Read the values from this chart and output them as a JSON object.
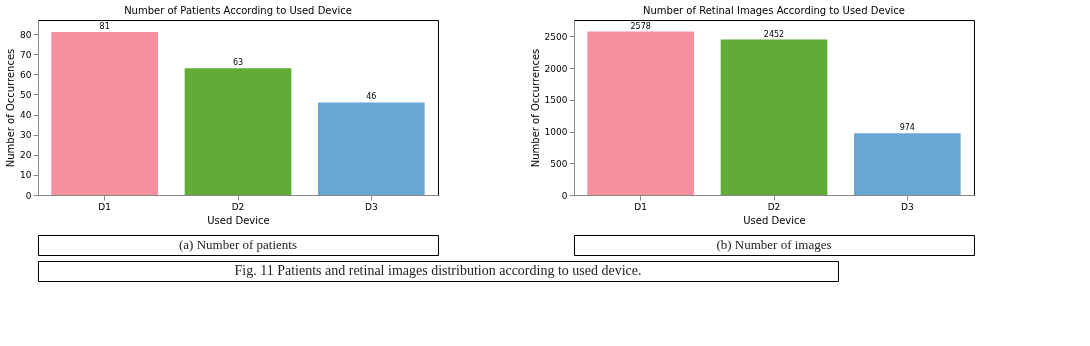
{
  "chart_data": [
    {
      "type": "bar",
      "title": "Number of Patients According to Used Device",
      "xlabel": "Used Device",
      "ylabel": "Number of Occurrences",
      "categories": [
        "D1",
        "D2",
        "D3"
      ],
      "values": [
        81,
        63,
        46
      ],
      "colors": [
        "#f5919f",
        "#61ab37",
        "#68a6d4"
      ],
      "ylim": [
        0,
        87
      ],
      "yticks": [
        0,
        10,
        20,
        30,
        40,
        50,
        60,
        70,
        80
      ],
      "data_labels": true,
      "grid": false,
      "annotations": [
        "(a) Number of patients"
      ]
    },
    {
      "type": "bar",
      "title": "Number of Retinal Images According to Used Device",
      "xlabel": "Used Device",
      "ylabel": "Number of Occurrences",
      "categories": [
        "D1",
        "D2",
        "D3"
      ],
      "values": [
        2578,
        2452,
        974
      ],
      "colors": [
        "#f5919f",
        "#61ab37",
        "#68a6d4"
      ],
      "ylim": [
        0,
        2760
      ],
      "yticks": [
        0,
        500,
        1000,
        1500,
        2000,
        2500
      ],
      "data_labels": true,
      "grid": false,
      "annotations": [
        "(b) Number of images",
        "Fig. 11 Patients and retinal images distribution according to used device."
      ]
    }
  ]
}
